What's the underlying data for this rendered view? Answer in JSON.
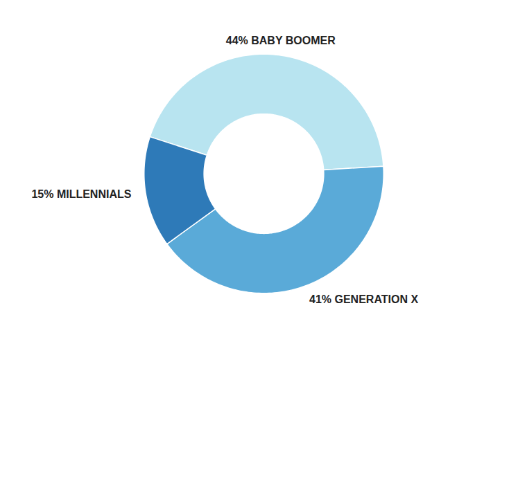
{
  "chart_data": {
    "type": "pie",
    "categories": [
      "44% BABY BOOMER",
      "41% GENERATION X",
      "15% MILLENNIALS"
    ],
    "values": [
      44,
      41,
      15
    ],
    "colors": [
      "#b8e4f0",
      "#5aaad8",
      "#2e7ab8"
    ]
  }
}
